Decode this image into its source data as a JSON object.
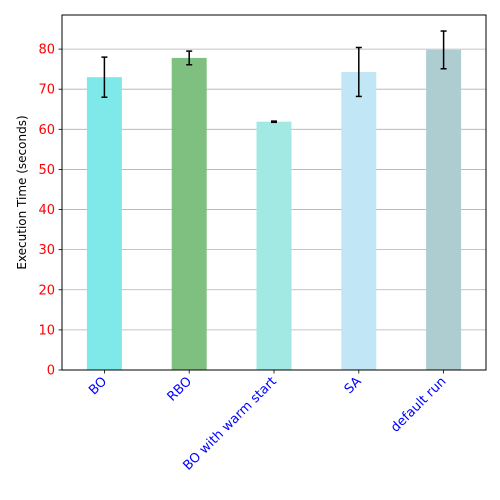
{
  "chart_data": {
    "type": "bar",
    "title": "",
    "xlabel": "",
    "ylabel": "Execution Time (seconds)",
    "ylim": [
      0,
      88.5
    ],
    "yticks": [
      0,
      10,
      20,
      30,
      40,
      50,
      60,
      70,
      80
    ],
    "grid": "horizontal",
    "categories": [
      "BO",
      "RBO",
      "BO with warm start",
      "SA",
      "default run"
    ],
    "values": [
      73,
      77.8,
      61.9,
      74.3,
      79.8
    ],
    "errors": [
      5.0,
      1.7,
      0.15,
      6.1,
      4.7
    ],
    "colors": [
      "#7fe8e8",
      "#7fbf7f",
      "#a2e8e3",
      "#c1e6f5",
      "#adcdd1"
    ],
    "tick_label_color_x": "#0000ff",
    "tick_label_color_y": "#ff0000"
  }
}
